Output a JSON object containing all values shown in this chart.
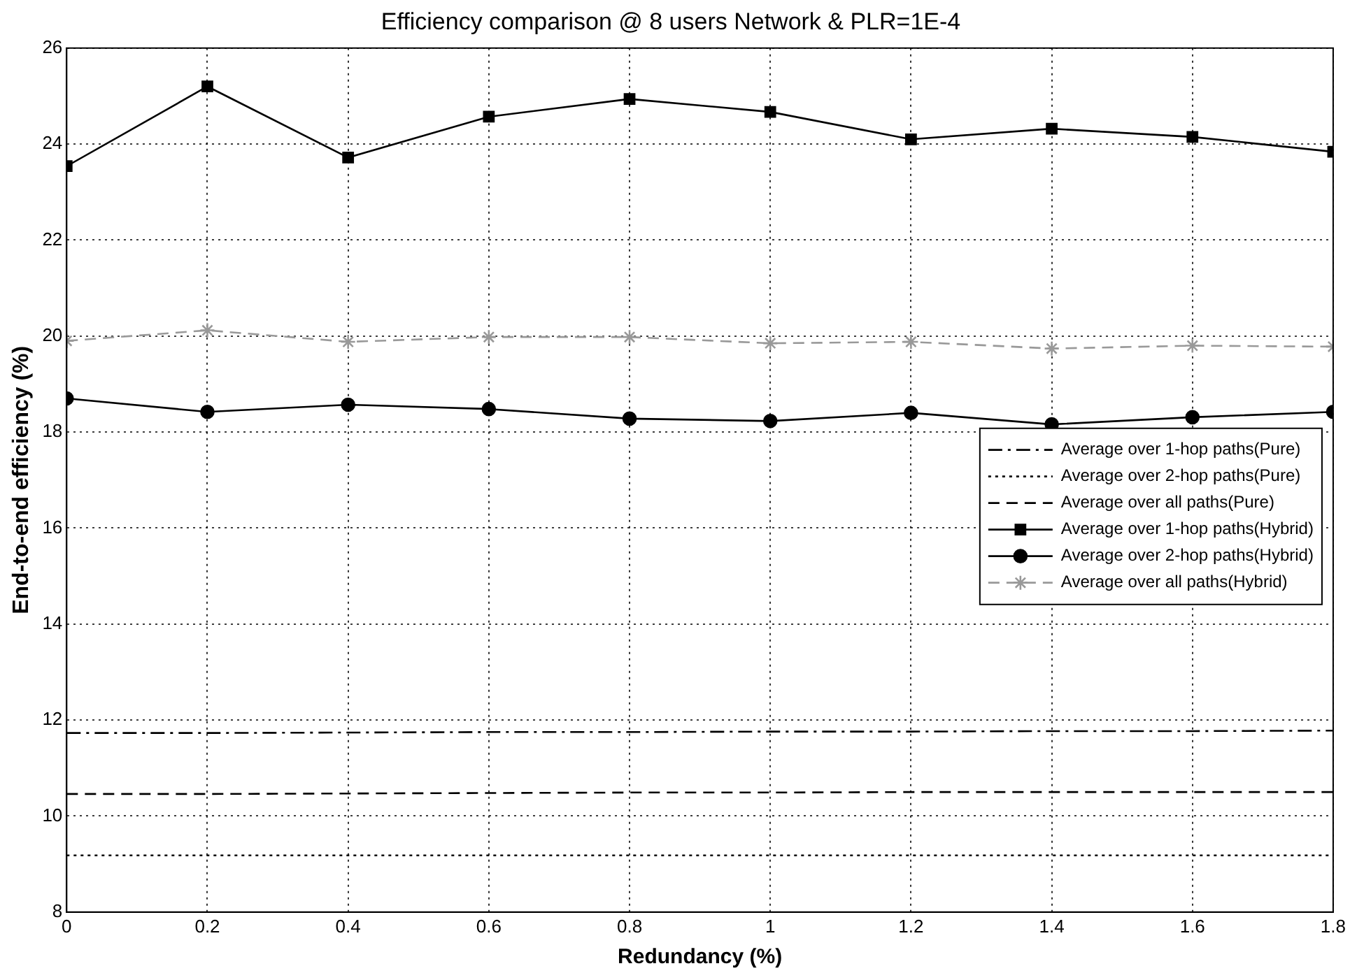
{
  "chart_data": {
    "type": "line",
    "title": "Efficiency comparison @ 8 users Network & PLR=1E-4",
    "xlabel": "Redundancy (%)",
    "ylabel": "End-to-end efficiency (%)",
    "x": [
      0,
      0.2,
      0.4,
      0.6,
      0.8,
      1,
      1.2,
      1.4,
      1.6,
      1.8
    ],
    "xlim": [
      0,
      1.8
    ],
    "xticks": [
      0,
      0.2,
      0.4,
      0.6,
      0.8,
      1,
      1.2,
      1.4,
      1.6,
      1.8
    ],
    "ylim": [
      8,
      26
    ],
    "yticks": [
      8,
      10,
      12,
      14,
      16,
      18,
      20,
      22,
      24,
      26
    ],
    "grid": true,
    "legend": "right",
    "series": [
      {
        "name": "Average over 1-hop paths(Pure)",
        "color": "#000000",
        "line_style": "dashdot",
        "marker": "none",
        "values": [
          11.73,
          11.73,
          11.74,
          11.75,
          11.75,
          11.76,
          11.76,
          11.77,
          11.77,
          11.78
        ]
      },
      {
        "name": "Average over 2-hop paths(Pure)",
        "color": "#000000",
        "line_style": "dotted",
        "marker": "none",
        "values": [
          9.18,
          9.18,
          9.18,
          9.18,
          9.18,
          9.18,
          9.18,
          9.18,
          9.18,
          9.18
        ]
      },
      {
        "name": "Average over all paths(Pure)",
        "color": "#000000",
        "line_style": "dashed",
        "marker": "none",
        "values": [
          10.46,
          10.46,
          10.47,
          10.48,
          10.49,
          10.49,
          10.5,
          10.5,
          10.5,
          10.5
        ]
      },
      {
        "name": "Average over 1-hop paths(Hybrid)",
        "color": "#000000",
        "line_style": "solid",
        "marker": "square",
        "values": [
          23.54,
          25.2,
          23.72,
          24.57,
          24.94,
          24.67,
          24.1,
          24.32,
          24.15,
          23.84
        ]
      },
      {
        "name": "Average over 2-hop paths(Hybrid)",
        "color": "#000000",
        "line_style": "solid",
        "marker": "circle",
        "values": [
          18.7,
          18.42,
          18.57,
          18.48,
          18.28,
          18.23,
          18.4,
          18.16,
          18.31,
          18.42
        ]
      },
      {
        "name": "Average over all paths(Hybrid)",
        "color": "#999999",
        "line_style": "dashed",
        "marker": "cross",
        "values": [
          19.9,
          20.12,
          19.88,
          19.98,
          19.98,
          19.85,
          19.88,
          19.74,
          19.8,
          19.78
        ]
      }
    ]
  }
}
